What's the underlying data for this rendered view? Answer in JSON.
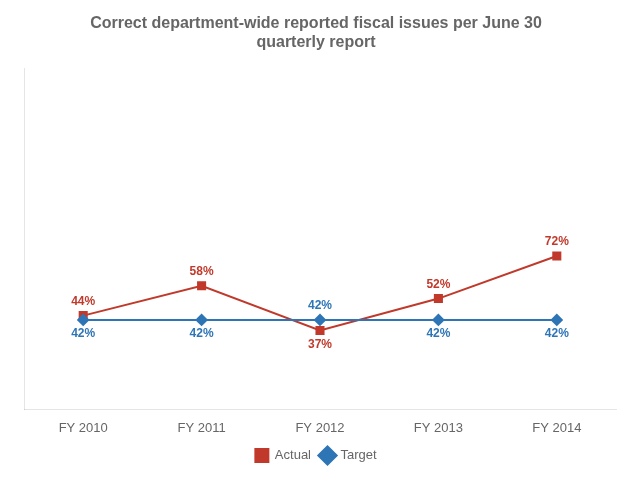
{
  "chart_data": {
    "type": "line",
    "title": "Correct department-wide reported fiscal issues per June 30\nquarterly report",
    "categories": [
      "FY 2010",
      "FY 2011",
      "FY 2012",
      "FY 2013",
      "FY 2014"
    ],
    "series": [
      {
        "name": "Target",
        "color": "#2E75B6",
        "marker": "diamond",
        "values": [
          42,
          42,
          42,
          42,
          42
        ],
        "value_labels": [
          "42%",
          "42%",
          "42%",
          "42%",
          "42%"
        ]
      },
      {
        "name": "Actual",
        "color": "#C0392B",
        "marker": "square",
        "values": [
          44,
          58,
          37,
          52,
          72
        ],
        "value_labels": [
          "44%",
          "58%",
          "37%",
          "52%",
          "72%"
        ]
      }
    ],
    "ylim": [
      0,
      160
    ],
    "tick_labels": "x",
    "grid": false,
    "legend": "bottom",
    "data_labels": true
  }
}
